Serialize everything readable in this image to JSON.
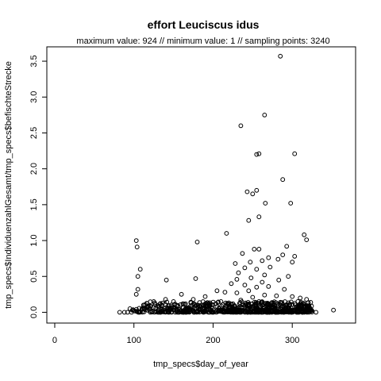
{
  "chart_data": {
    "type": "scatter",
    "title": "effort Leuciscus idus",
    "subtitle": "maximum value: 924  //  minimum value: 1  // sampling points: 3240",
    "xlabel": "tmp_specs$day_of_year",
    "ylabel": "tmp_specs$IndividuenzahlGesamt/tmp_specs$befischteStrecke",
    "xlim": [
      -10,
      380
    ],
    "ylim": [
      -0.15,
      3.7
    ],
    "xticks": [
      0,
      100,
      200,
      300
    ],
    "yticks": [
      0.0,
      0.5,
      1.0,
      1.5,
      2.0,
      2.5,
      3.0,
      3.5
    ],
    "xtick_labels": [
      "0",
      "100",
      "200",
      "300"
    ],
    "ytick_labels": [
      "0.0",
      "0.5",
      "1.0",
      "1.5",
      "2.0",
      "2.5",
      "3.0",
      "3.5"
    ],
    "grid": false,
    "legend": "none",
    "marker": "open-circle",
    "color": "#000000",
    "points": [
      [
        285,
        3.57
      ],
      [
        265,
        2.75
      ],
      [
        235,
        2.6
      ],
      [
        255,
        2.2
      ],
      [
        258,
        2.21
      ],
      [
        303,
        2.21
      ],
      [
        288,
        1.85
      ],
      [
        255,
        1.7
      ],
      [
        243,
        1.68
      ],
      [
        250,
        1.65
      ],
      [
        298,
        1.52
      ],
      [
        266,
        1.52
      ],
      [
        258,
        1.33
      ],
      [
        245,
        1.28
      ],
      [
        217,
        1.1
      ],
      [
        315,
        1.08
      ],
      [
        318,
        1.01
      ],
      [
        103,
        1.0
      ],
      [
        104,
        0.91
      ],
      [
        180,
        0.98
      ],
      [
        293,
        0.92
      ],
      [
        252,
        0.88
      ],
      [
        258,
        0.88
      ],
      [
        237,
        0.82
      ],
      [
        288,
        0.8
      ],
      [
        270,
        0.76
      ],
      [
        282,
        0.74
      ],
      [
        300,
        0.7
      ],
      [
        303,
        0.78
      ],
      [
        262,
        0.72
      ],
      [
        247,
        0.7
      ],
      [
        228,
        0.68
      ],
      [
        108,
        0.6
      ],
      [
        240,
        0.62
      ],
      [
        255,
        0.6
      ],
      [
        272,
        0.63
      ],
      [
        232,
        0.55
      ],
      [
        265,
        0.52
      ],
      [
        295,
        0.5
      ],
      [
        105,
        0.5
      ],
      [
        230,
        0.46
      ],
      [
        248,
        0.48
      ],
      [
        178,
        0.47
      ],
      [
        141,
        0.45
      ],
      [
        283,
        0.45
      ],
      [
        262,
        0.42
      ],
      [
        223,
        0.4
      ],
      [
        240,
        0.38
      ],
      [
        270,
        0.36
      ],
      [
        255,
        0.35
      ],
      [
        105,
        0.32
      ],
      [
        290,
        0.32
      ],
      [
        245,
        0.3
      ],
      [
        205,
        0.3
      ],
      [
        215,
        0.28
      ],
      [
        230,
        0.27
      ],
      [
        103,
        0.25
      ],
      [
        160,
        0.25
      ],
      [
        265,
        0.24
      ],
      [
        280,
        0.23
      ],
      [
        300,
        0.22
      ],
      [
        190,
        0.22
      ],
      [
        250,
        0.21
      ],
      [
        310,
        0.2
      ],
      [
        318,
        0.18
      ],
      [
        140,
        0.18
      ],
      [
        175,
        0.18
      ],
      [
        235,
        0.17
      ],
      [
        125,
        0.15
      ],
      [
        150,
        0.15
      ],
      [
        210,
        0.15
      ],
      [
        258,
        0.15
      ],
      [
        285,
        0.14
      ],
      [
        195,
        0.12
      ],
      [
        225,
        0.12
      ],
      [
        165,
        0.12
      ],
      [
        270,
        0.12
      ],
      [
        300,
        0.11
      ],
      [
        112,
        0.1
      ],
      [
        135,
        0.1
      ],
      [
        185,
        0.1
      ],
      [
        245,
        0.1
      ],
      [
        320,
        0.09
      ],
      [
        155,
        0.08
      ],
      [
        205,
        0.08
      ],
      [
        275,
        0.08
      ],
      [
        95,
        0.05
      ],
      [
        120,
        0.05
      ],
      [
        145,
        0.05
      ],
      [
        170,
        0.05
      ],
      [
        215,
        0.05
      ],
      [
        255,
        0.05
      ],
      [
        290,
        0.05
      ],
      [
        310,
        0.05
      ],
      [
        100,
        0.02
      ],
      [
        130,
        0.02
      ],
      [
        160,
        0.02
      ],
      [
        190,
        0.02
      ],
      [
        230,
        0.02
      ],
      [
        265,
        0.02
      ],
      [
        295,
        0.02
      ],
      [
        325,
        0.02
      ],
      [
        352,
        0.03
      ],
      [
        82,
        0.0
      ],
      [
        88,
        0.0
      ],
      [
        92,
        0.0
      ],
      [
        97,
        0.0
      ],
      [
        330,
        0.0
      ]
    ],
    "dense_band": {
      "x_range": [
        95,
        325
      ],
      "y_range": [
        0.0,
        0.15
      ],
      "count": 700
    }
  }
}
